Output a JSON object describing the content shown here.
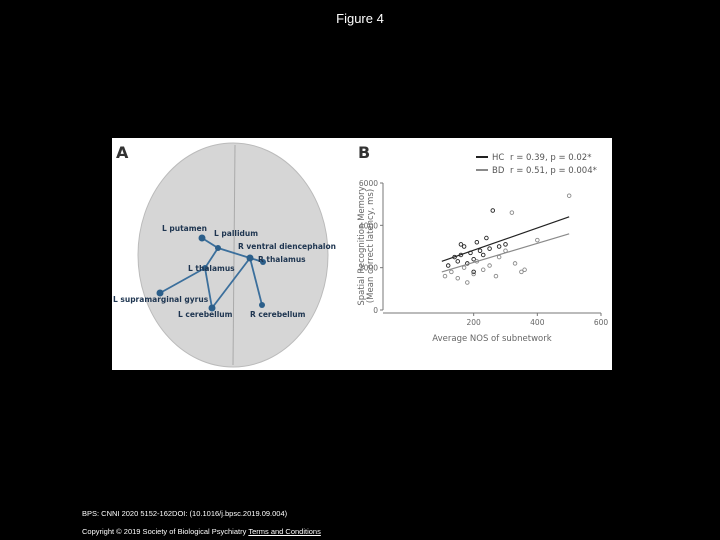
{
  "title": "Figure 4",
  "panel_a": {
    "letter": "A",
    "labels": [
      "L putamen",
      "L pallidum",
      "R ventral diencephalon",
      "R thalamus",
      "L thalamus",
      "L supramarginal gyrus",
      "L cerebellum",
      "R cerebellum"
    ]
  },
  "chart_data": {
    "type": "scatter",
    "letter": "B",
    "y_label": [
      "Spatial Recognition Memory",
      "(Mean correct latency, ms)"
    ],
    "x_label": "Average NOS of subnetwork",
    "xlim": [
      0,
      600
    ],
    "xticks": [
      200,
      400,
      600
    ],
    "ylim": [
      0,
      6000
    ],
    "yticks": [
      0,
      2000,
      4000,
      6000
    ],
    "series": [
      {
        "name": "HC",
        "stats": "r = 0.39, p = 0.02*",
        "color": "#222222",
        "x": [
          120,
          140,
          150,
          160,
          170,
          180,
          190,
          200,
          210,
          220,
          230,
          240,
          250,
          260,
          280,
          300,
          160,
          200
        ],
        "values": [
          2100,
          2500,
          2300,
          2600,
          3000,
          2200,
          2700,
          2400,
          3200,
          2800,
          2600,
          3400,
          2900,
          4700,
          3000,
          3100,
          3100,
          1800
        ],
        "fit_x": [
          100,
          500
        ],
        "fit_y": [
          2300,
          4400
        ]
      },
      {
        "name": "BD",
        "stats": "r = 0.51, p = 0.004*",
        "color": "#8a8a8a",
        "x": [
          110,
          130,
          150,
          170,
          180,
          200,
          210,
          230,
          250,
          270,
          280,
          300,
          320,
          330,
          350,
          360,
          400,
          500
        ],
        "values": [
          1600,
          1800,
          1500,
          2000,
          1300,
          1700,
          2300,
          1900,
          2100,
          1600,
          2500,
          2800,
          4600,
          2200,
          1800,
          1900,
          3300,
          5400
        ],
        "fit_x": [
          100,
          500
        ],
        "fit_y": [
          1800,
          3600
        ]
      }
    ]
  },
  "footer": {
    "citation": "BPS: CNNI 2020 5152-162DOI: (10.1016/j.bpsc.2019.09.004)",
    "copyright": "Copyright © 2019 Society of Biological Psychiatry",
    "link": "Terms and Conditions"
  }
}
